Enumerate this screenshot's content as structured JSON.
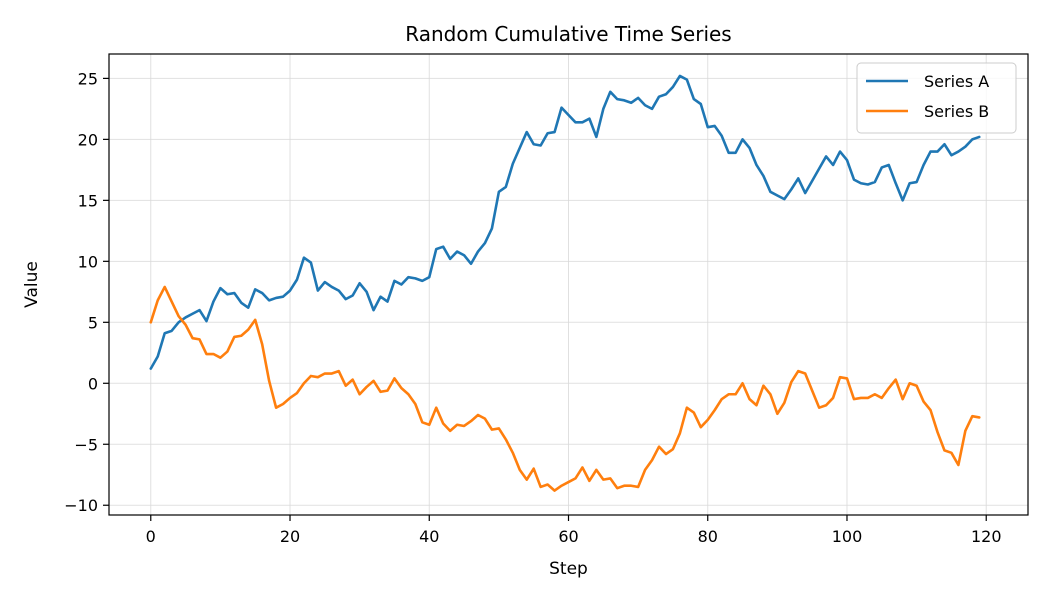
{
  "chart_data": {
    "type": "line",
    "title": "Random Cumulative Time Series",
    "xlabel": "Step",
    "ylabel": "Value",
    "xlim": [
      -6,
      126
    ],
    "ylim": [
      -10.8,
      27
    ],
    "xticks": [
      0,
      20,
      40,
      60,
      80,
      100,
      120
    ],
    "xtick_labels": [
      "0",
      "20",
      "40",
      "60",
      "80",
      "100",
      "120"
    ],
    "yticks": [
      -10,
      -5,
      0,
      5,
      10,
      15,
      20,
      25
    ],
    "ytick_labels": [
      "−10",
      "−5",
      "0",
      "5",
      "10",
      "15",
      "20",
      "25"
    ],
    "grid": true,
    "legend_position": "top-right",
    "series": [
      {
        "name": "Series A",
        "color": "#1f77b4",
        "values": [
          1.2,
          2.2,
          4.1,
          4.3,
          5.0,
          5.4,
          5.7,
          6.0,
          5.1,
          6.7,
          7.8,
          7.3,
          7.4,
          6.6,
          6.2,
          7.7,
          7.4,
          6.8,
          7.0,
          7.1,
          7.6,
          8.5,
          10.3,
          9.9,
          7.6,
          8.3,
          7.9,
          7.6,
          6.9,
          7.2,
          8.2,
          7.5,
          6.0,
          7.1,
          6.7,
          8.4,
          8.1,
          8.7,
          8.6,
          8.4,
          8.7,
          11.0,
          11.2,
          10.2,
          10.8,
          10.5,
          9.8,
          10.8,
          11.5,
          12.7,
          15.7,
          16.1,
          18.0,
          19.3,
          20.6,
          19.6,
          19.5,
          20.5,
          20.6,
          22.6,
          22.0,
          21.4,
          21.4,
          21.7,
          20.2,
          22.5,
          23.9,
          23.3,
          23.2,
          23.0,
          23.4,
          22.8,
          22.5,
          23.5,
          23.7,
          24.3,
          25.2,
          24.9,
          23.3,
          22.9,
          21.0,
          21.1,
          20.3,
          18.9,
          18.9,
          20.0,
          19.3,
          17.9,
          17.0,
          15.7,
          15.4,
          15.1,
          15.9,
          16.8,
          15.6,
          16.6,
          17.6,
          18.6,
          17.9,
          19.0,
          18.3,
          16.7,
          16.4,
          16.3,
          16.5,
          17.7,
          17.9,
          16.4,
          15.0,
          16.4,
          16.5,
          17.9,
          19.0,
          19.0,
          19.6,
          18.7,
          19.0,
          19.4,
          20.0,
          20.2
        ]
      },
      {
        "name": "Series B",
        "color": "#ff7f0e",
        "values": [
          5.0,
          6.8,
          7.9,
          6.7,
          5.5,
          4.8,
          3.7,
          3.6,
          2.4,
          2.4,
          2.1,
          2.6,
          3.8,
          3.9,
          4.4,
          5.2,
          3.2,
          0.2,
          -2.0,
          -1.7,
          -1.2,
          -0.8,
          0.0,
          0.6,
          0.5,
          0.8,
          0.8,
          1.0,
          -0.2,
          0.3,
          -0.9,
          -0.3,
          0.2,
          -0.7,
          -0.6,
          0.4,
          -0.4,
          -0.9,
          -1.7,
          -3.2,
          -3.4,
          -2.0,
          -3.3,
          -3.9,
          -3.4,
          -3.5,
          -3.1,
          -2.6,
          -2.9,
          -3.8,
          -3.7,
          -4.6,
          -5.7,
          -7.1,
          -7.9,
          -7.0,
          -8.5,
          -8.3,
          -8.8,
          -8.4,
          -8.1,
          -7.8,
          -6.9,
          -8.0,
          -7.1,
          -7.9,
          -7.8,
          -8.6,
          -8.4,
          -8.4,
          -8.5,
          -7.1,
          -6.3,
          -5.2,
          -5.8,
          -5.4,
          -4.1,
          -2.0,
          -2.4,
          -3.6,
          -3.0,
          -2.2,
          -1.3,
          -0.9,
          -0.9,
          0.0,
          -1.3,
          -1.8,
          -0.2,
          -0.9,
          -2.5,
          -1.6,
          0.1,
          1.0,
          0.8,
          -0.6,
          -2.0,
          -1.8,
          -1.2,
          0.5,
          0.4,
          -1.3,
          -1.2,
          -1.2,
          -0.9,
          -1.2,
          -0.4,
          0.3,
          -1.3,
          0.0,
          -0.2,
          -1.5,
          -2.2,
          -4.0,
          -5.5,
          -5.7,
          -6.7,
          -3.9,
          -2.7,
          -2.8
        ]
      }
    ]
  }
}
